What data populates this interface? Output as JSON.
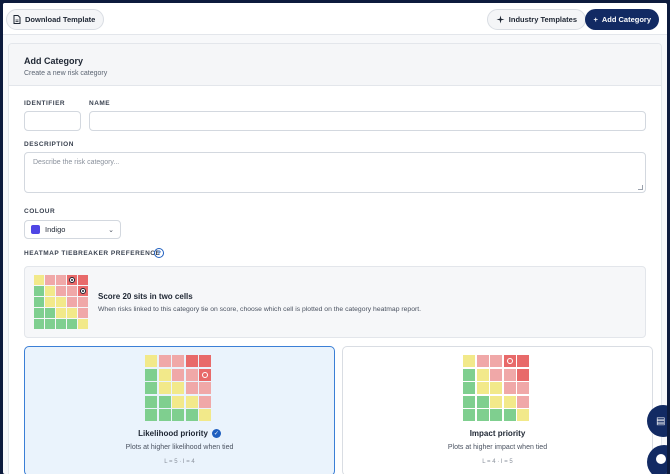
{
  "toolbar": {
    "download_label": "Download Template",
    "industry_label": "Industry Templates",
    "add_label": "Add Category"
  },
  "form": {
    "title": "Add Category",
    "subtitle": "Create a new risk category",
    "identifier_label": "IDENTIFIER",
    "name_label": "NAME",
    "identifier_value": "",
    "name_value": "",
    "description_label": "DESCRIPTION",
    "description_placeholder": "Describe the risk category...",
    "colour_label": "COLOUR",
    "colour_value": "Indigo",
    "colour_hex": "#4f46e5",
    "heatmap_label": "HEATMAP TIEBREAKER PREFERENCE"
  },
  "tiebreaker": {
    "title": "Score 20 sits in two cells",
    "description": "When risks linked to this category tie on score, choose which cell is plotted on the category heatmap report."
  },
  "options": [
    {
      "title": "Likelihood priority",
      "description": "Plots at higher likelihood when tied",
      "meta": "L = 5 · I = 4",
      "selected": true
    },
    {
      "title": "Impact priority",
      "description": "Plots at higher impact when tied",
      "meta": "L = 4 · I = 5",
      "selected": false
    }
  ],
  "heatmap_colors": {
    "green": "#7fcf8f",
    "yellow": "#f2e98a",
    "pink": "#f0a8a8",
    "red": "#e86a6a"
  },
  "heatmap_rows": [
    [
      "yellow",
      "pink",
      "pink",
      "red",
      "red"
    ],
    [
      "green",
      "yellow",
      "pink",
      "pink",
      "red"
    ],
    [
      "green",
      "yellow",
      "yellow",
      "pink",
      "pink"
    ],
    [
      "green",
      "green",
      "yellow",
      "yellow",
      "pink"
    ],
    [
      "green",
      "green",
      "green",
      "green",
      "yellow"
    ]
  ]
}
